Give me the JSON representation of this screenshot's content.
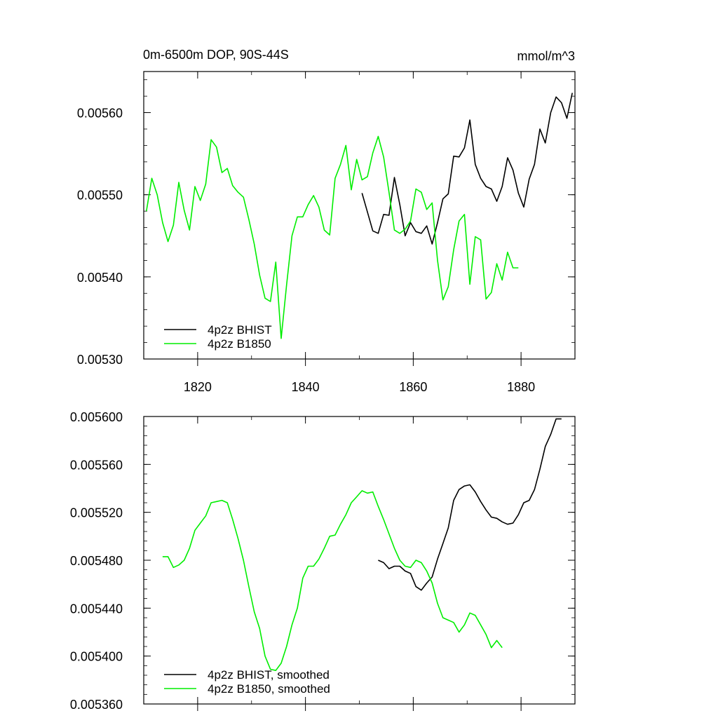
{
  "colors": {
    "bhist": "#000000",
    "b1850": "#00ee00",
    "axis": "#000000",
    "background": "#ffffff"
  },
  "chart_data": [
    {
      "type": "line",
      "title": "0m-6500m DOP, 90S-44S",
      "units": "mmol/m^3",
      "xlabel": "",
      "ylabel": "",
      "xlim": [
        1810,
        1890
      ],
      "ylim": [
        0.0053,
        0.00565
      ],
      "x_ticks": [
        1820,
        1840,
        1860,
        1880
      ],
      "x_tick_labels": [
        "1820",
        "1840",
        "1860",
        "1880"
      ],
      "y_ticks": [
        0.0053,
        0.0054,
        0.0055,
        0.0056
      ],
      "y_tick_labels": [
        "0.00530",
        "0.00540",
        "0.00550",
        "0.00560"
      ],
      "grid": false,
      "legend_position": "bottom-left",
      "series": [
        {
          "name": "4p2z BHIST",
          "color": "#000000",
          "x": [
            1850.5,
            1851.5,
            1852.5,
            1853.5,
            1854.5,
            1855.5,
            1856.5,
            1857.5,
            1858.5,
            1859.5,
            1860.5,
            1861.5,
            1862.5,
            1863.5,
            1864.5,
            1865.5,
            1866.5,
            1867.5,
            1868.5,
            1869.5,
            1870.5,
            1871.5,
            1872.5,
            1873.5,
            1874.5,
            1875.5,
            1876.5,
            1877.5,
            1878.5,
            1879.5,
            1880.5,
            1881.5,
            1882.5,
            1883.5,
            1884.5,
            1885.5,
            1886.5,
            1887.5,
            1888.5,
            1889.5
          ],
          "y": [
            0.005502,
            0.005479,
            0.005456,
            0.005453,
            0.005476,
            0.005475,
            0.005521,
            0.005488,
            0.00545,
            0.005466,
            0.005455,
            0.005453,
            0.005462,
            0.00544,
            0.005466,
            0.005495,
            0.005501,
            0.005547,
            0.005546,
            0.005557,
            0.005591,
            0.005537,
            0.00552,
            0.00551,
            0.005507,
            0.005492,
            0.00551,
            0.005545,
            0.00553,
            0.005502,
            0.005485,
            0.005519,
            0.005537,
            0.00558,
            0.005563,
            0.0056,
            0.005619,
            0.005612,
            0.005593,
            0.005624
          ]
        },
        {
          "name": "4p2z B1850",
          "color": "#00ee00",
          "x": [
            1810.5,
            1811.5,
            1812.5,
            1813.5,
            1814.5,
            1815.5,
            1816.5,
            1817.5,
            1818.5,
            1819.5,
            1820.5,
            1821.5,
            1822.5,
            1823.5,
            1824.5,
            1825.5,
            1826.5,
            1827.5,
            1828.5,
            1829.5,
            1830.5,
            1831.5,
            1832.5,
            1833.5,
            1834.5,
            1835.5,
            1836.5,
            1837.5,
            1838.5,
            1839.5,
            1840.5,
            1841.5,
            1842.5,
            1843.5,
            1844.5,
            1845.5,
            1846.5,
            1847.5,
            1848.5,
            1849.5,
            1850.5,
            1851.5,
            1852.5,
            1853.5,
            1854.5,
            1855.5,
            1856.5,
            1857.5,
            1858.5,
            1859.5,
            1860.5,
            1861.5,
            1862.5,
            1863.5,
            1864.5,
            1865.5,
            1866.5,
            1867.5,
            1868.5,
            1869.5,
            1870.5,
            1871.5,
            1872.5,
            1873.5,
            1874.5,
            1875.5,
            1876.5,
            1877.5,
            1878.5,
            1879.5
          ],
          "y": [
            0.00548,
            0.00552,
            0.0055,
            0.005466,
            0.005443,
            0.005463,
            0.005515,
            0.005481,
            0.005457,
            0.00551,
            0.005493,
            0.005513,
            0.005567,
            0.005558,
            0.005527,
            0.005532,
            0.005511,
            0.005503,
            0.005497,
            0.00547,
            0.00544,
            0.005402,
            0.005374,
            0.00537,
            0.005418,
            0.005325,
            0.00539,
            0.00545,
            0.005473,
            0.005473,
            0.005488,
            0.005499,
            0.005485,
            0.005457,
            0.005451,
            0.00552,
            0.005537,
            0.00556,
            0.005506,
            0.005543,
            0.005518,
            0.005522,
            0.005551,
            0.005571,
            0.005546,
            0.005503,
            0.005457,
            0.005453,
            0.005458,
            0.005468,
            0.005507,
            0.005503,
            0.005482,
            0.00549,
            0.00542,
            0.005372,
            0.005388,
            0.005433,
            0.005468,
            0.005476,
            0.005391,
            0.005449,
            0.005445,
            0.005373,
            0.005381,
            0.005416,
            0.005396,
            0.00543,
            0.005411,
            0.005411
          ]
        }
      ]
    },
    {
      "type": "line",
      "title": "",
      "xlabel": "",
      "ylabel": "",
      "xlim": [
        1810,
        1890
      ],
      "ylim": [
        0.00536,
        0.0056
      ],
      "x_ticks": [
        1820,
        1840,
        1860,
        1880
      ],
      "y_ticks": [
        0.00536,
        0.0054,
        0.00544,
        0.00548,
        0.00552,
        0.00556,
        0.0056
      ],
      "y_tick_labels": [
        "0.005360",
        "0.005400",
        "0.005440",
        "0.005480",
        "0.005520",
        "0.005560",
        "0.005600"
      ],
      "grid": false,
      "legend_position": "bottom-left",
      "series": [
        {
          "name": "4p2z BHIST, smoothed",
          "color": "#000000",
          "x": [
            1853.5,
            1854.5,
            1855.5,
            1856.5,
            1857.5,
            1858.5,
            1859.5,
            1860.5,
            1861.5,
            1862.5,
            1863.5,
            1864.5,
            1865.5,
            1866.5,
            1867.5,
            1868.5,
            1869.5,
            1870.5,
            1871.5,
            1872.5,
            1873.5,
            1874.5,
            1875.5,
            1876.5,
            1877.5,
            1878.5,
            1879.5,
            1880.5,
            1881.5,
            1882.5,
            1883.5,
            1884.5,
            1885.5,
            1886.5,
            1887.5
          ],
          "y": [
            0.00548,
            0.005478,
            0.005473,
            0.005475,
            0.005475,
            0.005471,
            0.005469,
            0.005458,
            0.005455,
            0.005461,
            0.005466,
            0.005481,
            0.005494,
            0.005507,
            0.00553,
            0.005539,
            0.005542,
            0.005543,
            0.005537,
            0.005529,
            0.005522,
            0.005516,
            0.005515,
            0.005512,
            0.00551,
            0.005511,
            0.005518,
            0.005528,
            0.00553,
            0.005539,
            0.005556,
            0.005575,
            0.005585,
            0.005598,
            0.005598
          ]
        },
        {
          "name": "4p2z B1850, smoothed",
          "color": "#00ee00",
          "x": [
            1813.5,
            1814.5,
            1815.5,
            1816.5,
            1817.5,
            1818.5,
            1819.5,
            1820.5,
            1821.5,
            1822.5,
            1823.5,
            1824.5,
            1825.5,
            1826.5,
            1827.5,
            1828.5,
            1829.5,
            1830.5,
            1831.5,
            1832.5,
            1833.5,
            1834.5,
            1835.5,
            1836.5,
            1837.5,
            1838.5,
            1839.5,
            1840.5,
            1841.5,
            1842.5,
            1843.5,
            1844.5,
            1845.5,
            1846.5,
            1847.5,
            1848.5,
            1849.5,
            1850.5,
            1851.5,
            1852.5,
            1853.5,
            1854.5,
            1855.5,
            1856.5,
            1857.5,
            1858.5,
            1859.5,
            1860.5,
            1861.5,
            1862.5,
            1863.5,
            1864.5,
            1865.5,
            1866.5,
            1867.5,
            1868.5,
            1869.5,
            1870.5,
            1871.5,
            1872.5,
            1873.5,
            1874.5,
            1875.5,
            1876.5
          ],
          "y": [
            0.005483,
            0.005483,
            0.005474,
            0.005476,
            0.00548,
            0.00549,
            0.005505,
            0.005511,
            0.005517,
            0.005528,
            0.005529,
            0.00553,
            0.005528,
            0.005514,
            0.005498,
            0.00548,
            0.005458,
            0.005437,
            0.005423,
            0.0054,
            0.005389,
            0.005388,
            0.005394,
            0.005408,
            0.005426,
            0.00544,
            0.005465,
            0.005475,
            0.005475,
            0.005481,
            0.00549,
            0.0055,
            0.005501,
            0.00551,
            0.005518,
            0.005528,
            0.005533,
            0.005538,
            0.005536,
            0.005537,
            0.005525,
            0.005514,
            0.005502,
            0.00549,
            0.00548,
            0.005475,
            0.005474,
            0.00548,
            0.005478,
            0.005471,
            0.005461,
            0.005444,
            0.005432,
            0.00543,
            0.005428,
            0.00542,
            0.005426,
            0.005436,
            0.005434,
            0.005426,
            0.005418,
            0.005407,
            0.005413,
            0.005407
          ]
        }
      ]
    }
  ]
}
